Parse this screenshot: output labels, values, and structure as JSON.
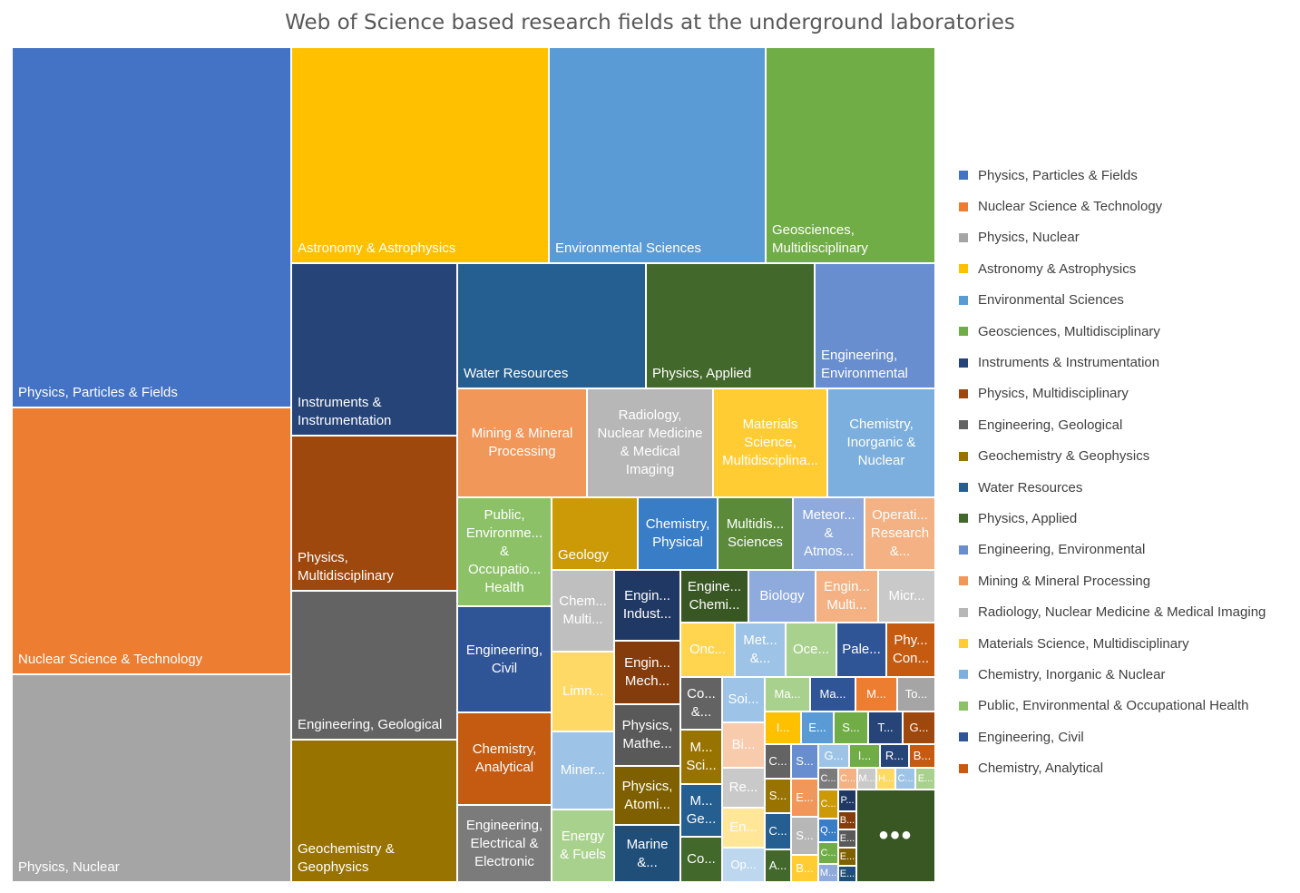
{
  "chart_data": {
    "type": "treemap",
    "title": "Web of Science based research fields at the underground laboratories",
    "legend_position": "right",
    "more_indicator": "•••",
    "legend": [
      {
        "label": "Physics, Particles & Fields",
        "color": "#4472C4"
      },
      {
        "label": "Nuclear Science & Technology",
        "color": "#ED7D31"
      },
      {
        "label": "Physics, Nuclear",
        "color": "#A5A5A5"
      },
      {
        "label": "Astronomy & Astrophysics",
        "color": "#FFC000"
      },
      {
        "label": "Environmental Sciences",
        "color": "#5B9BD5"
      },
      {
        "label": "Geosciences, Multidisciplinary",
        "color": "#70AD47"
      },
      {
        "label": "Instruments & Instrumentation",
        "color": "#264478"
      },
      {
        "label": "Physics, Multidisciplinary",
        "color": "#9E480E"
      },
      {
        "label": "Engineering, Geological",
        "color": "#636363"
      },
      {
        "label": "Geochemistry & Geophysics",
        "color": "#997300"
      },
      {
        "label": "Water Resources",
        "color": "#255E91"
      },
      {
        "label": "Physics, Applied",
        "color": "#43682B"
      },
      {
        "label": "Engineering, Environmental",
        "color": "#698ED0"
      },
      {
        "label": "Mining & Mineral Processing",
        "color": "#F1975A"
      },
      {
        "label": "Radiology, Nuclear Medicine & Medical Imaging",
        "color": "#B7B7B7"
      },
      {
        "label": "Materials Science, Multidisciplinary",
        "color": "#FFCD33"
      },
      {
        "label": "Chemistry, Inorganic & Nuclear",
        "color": "#7CAFDD"
      },
      {
        "label": "Public, Environmental & Occupational Health",
        "color": "#8CC168"
      },
      {
        "label": "Engineering, Civil",
        "color": "#2F5597"
      },
      {
        "label": "Chemistry, Analytical",
        "color": "#C55A11"
      }
    ],
    "tiles": [
      {
        "label": "Physics, Particles & Fields",
        "color": "#4472C4",
        "x0": 13,
        "y0": 52,
        "x1": 321,
        "y1": 449,
        "align": "left"
      },
      {
        "label": "Nuclear Science & Technology",
        "color": "#ED7D31",
        "x0": 13,
        "y0": 449,
        "x1": 321,
        "y1": 743,
        "align": "left"
      },
      {
        "label": "Physics, Nuclear",
        "color": "#A5A5A5",
        "x0": 13,
        "y0": 743,
        "x1": 321,
        "y1": 972,
        "align": "left"
      },
      {
        "label": "Astronomy & Astrophysics",
        "color": "#FFC000",
        "x0": 321,
        "y0": 52,
        "x1": 605,
        "y1": 290,
        "align": "left"
      },
      {
        "label": "Environmental Sciences",
        "color": "#5B9BD5",
        "x0": 605,
        "y0": 52,
        "x1": 844,
        "y1": 290,
        "align": "left"
      },
      {
        "label": "Geosciences,\nMultidisciplinary",
        "color": "#70AD47",
        "x0": 844,
        "y0": 52,
        "x1": 1031,
        "y1": 290,
        "align": "left"
      },
      {
        "label": "Instruments &\nInstrumentation",
        "color": "#264478",
        "x0": 321,
        "y0": 290,
        "x1": 504,
        "y1": 480,
        "align": "left"
      },
      {
        "label": "Physics,\nMultidisciplinary",
        "color": "#9E480E",
        "x0": 321,
        "y0": 480,
        "x1": 504,
        "y1": 651,
        "align": "left"
      },
      {
        "label": "Engineering, Geological",
        "color": "#636363",
        "x0": 321,
        "y0": 651,
        "x1": 504,
        "y1": 815,
        "align": "left"
      },
      {
        "label": "Geochemistry &\nGeophysics",
        "color": "#997300",
        "x0": 321,
        "y0": 815,
        "x1": 504,
        "y1": 972,
        "align": "left"
      },
      {
        "label": "Water Resources",
        "color": "#255E91",
        "x0": 504,
        "y0": 290,
        "x1": 712,
        "y1": 428,
        "align": "left"
      },
      {
        "label": "Physics, Applied",
        "color": "#43682B",
        "x0": 712,
        "y0": 290,
        "x1": 898,
        "y1": 428,
        "align": "left"
      },
      {
        "label": "Engineering,\nEnvironmental",
        "color": "#698ED0",
        "x0": 898,
        "y0": 290,
        "x1": 1031,
        "y1": 428,
        "align": "left"
      },
      {
        "label": "Mining & Mineral\nProcessing",
        "color": "#F1975A",
        "x0": 504,
        "y0": 428,
        "x1": 647,
        "y1": 548,
        "align": "center"
      },
      {
        "label": "Radiology,\nNuclear Medicine\n& Medical\nImaging",
        "color": "#B7B7B7",
        "x0": 647,
        "y0": 428,
        "x1": 786,
        "y1": 548,
        "align": "center"
      },
      {
        "label": "Materials\nScience,\nMultidisciplina...",
        "color": "#FFCD33",
        "x0": 786,
        "y0": 428,
        "x1": 912,
        "y1": 548,
        "align": "center"
      },
      {
        "label": "Chemistry,\nInorganic &\nNuclear",
        "color": "#7CAFDD",
        "x0": 912,
        "y0": 428,
        "x1": 1031,
        "y1": 548,
        "align": "center"
      },
      {
        "label": "Public,\nEnvironme...\n&\nOccupatio...\nHealth",
        "color": "#8CC168",
        "x0": 504,
        "y0": 548,
        "x1": 608,
        "y1": 668,
        "align": "center"
      },
      {
        "label": "Geology",
        "color": "#CC9A06",
        "x0": 608,
        "y0": 548,
        "x1": 703,
        "y1": 628,
        "align": "left"
      },
      {
        "label": "Chemistry,\nPhysical",
        "color": "#3A7DC7",
        "x0": 703,
        "y0": 548,
        "x1": 791,
        "y1": 628,
        "align": "center"
      },
      {
        "label": "Multidis...\nSciences",
        "color": "#5A8A3A",
        "x0": 791,
        "y0": 548,
        "x1": 874,
        "y1": 628,
        "align": "center"
      },
      {
        "label": "Meteor...\n&\nAtmos...",
        "color": "#8FAADC",
        "x0": 874,
        "y0": 548,
        "x1": 953,
        "y1": 628,
        "align": "center"
      },
      {
        "label": "Operati...\nResearch\n&...",
        "color": "#F4B183",
        "x0": 953,
        "y0": 548,
        "x1": 1031,
        "y1": 628,
        "align": "center"
      },
      {
        "label": "Engineering,\nCivil",
        "color": "#2F5597",
        "x0": 504,
        "y0": 668,
        "x1": 608,
        "y1": 785,
        "align": "center"
      },
      {
        "label": "Chemistry,\nAnalytical",
        "color": "#C55A11",
        "x0": 504,
        "y0": 785,
        "x1": 608,
        "y1": 887,
        "align": "center"
      },
      {
        "label": "Engineering,\nElectrical &\nElectronic",
        "color": "#7B7B7B",
        "x0": 504,
        "y0": 887,
        "x1": 608,
        "y1": 972,
        "align": "center"
      },
      {
        "label": "Chem...\nMulti...",
        "color": "#BFBFBF",
        "x0": 608,
        "y0": 628,
        "x1": 677,
        "y1": 718,
        "align": "center"
      },
      {
        "label": "Limn...",
        "color": "#FFD966",
        "x0": 608,
        "y0": 718,
        "x1": 677,
        "y1": 806,
        "align": "center"
      },
      {
        "label": "Miner...",
        "color": "#9DC3E6",
        "x0": 608,
        "y0": 806,
        "x1": 677,
        "y1": 892,
        "align": "center"
      },
      {
        "label": "Energy\n& Fuels",
        "color": "#A9D18E",
        "x0": 608,
        "y0": 892,
        "x1": 677,
        "y1": 972,
        "align": "center"
      },
      {
        "label": "Engin...\nIndust...",
        "color": "#203864",
        "x0": 677,
        "y0": 628,
        "x1": 750,
        "y1": 706,
        "align": "center"
      },
      {
        "label": "Engin...\nMech...",
        "color": "#843C0C",
        "x0": 677,
        "y0": 706,
        "x1": 750,
        "y1": 776,
        "align": "center"
      },
      {
        "label": "Physics,\nMathe...",
        "color": "#595959",
        "x0": 677,
        "y0": 776,
        "x1": 750,
        "y1": 844,
        "align": "center"
      },
      {
        "label": "Physics,\nAtomi...",
        "color": "#7F6000",
        "x0": 677,
        "y0": 844,
        "x1": 750,
        "y1": 909,
        "align": "center"
      },
      {
        "label": "Marine\n&...",
        "color": "#1F4E79",
        "x0": 677,
        "y0": 909,
        "x1": 750,
        "y1": 972,
        "align": "center"
      },
      {
        "label": "Engine...\nChemi...",
        "color": "#385723",
        "x0": 750,
        "y0": 628,
        "x1": 825,
        "y1": 686,
        "align": "center"
      },
      {
        "label": "Biology",
        "color": "#8FAADC",
        "x0": 825,
        "y0": 628,
        "x1": 899,
        "y1": 686,
        "align": "center"
      },
      {
        "label": "Engin...\nMulti...",
        "color": "#F4B183",
        "x0": 899,
        "y0": 628,
        "x1": 968,
        "y1": 686,
        "align": "center"
      },
      {
        "label": "Micr...",
        "color": "#C9C9C9",
        "x0": 968,
        "y0": 628,
        "x1": 1031,
        "y1": 686,
        "align": "center"
      },
      {
        "label": "Onc...",
        "color": "#FFD54F",
        "x0": 750,
        "y0": 686,
        "x1": 810,
        "y1": 746,
        "align": "center"
      },
      {
        "label": "Met...\n&...",
        "color": "#9DC3E6",
        "x0": 810,
        "y0": 686,
        "x1": 866,
        "y1": 746,
        "align": "center"
      },
      {
        "label": "Oce...",
        "color": "#A9D18E",
        "x0": 866,
        "y0": 686,
        "x1": 922,
        "y1": 746,
        "align": "center"
      },
      {
        "label": "Pale...",
        "color": "#2F5597",
        "x0": 922,
        "y0": 686,
        "x1": 977,
        "y1": 746,
        "align": "center"
      },
      {
        "label": "Phy...\nCon...",
        "color": "#C55A11",
        "x0": 977,
        "y0": 686,
        "x1": 1031,
        "y1": 746,
        "align": "center"
      },
      {
        "label": "Co...\n&...",
        "color": "#636363",
        "x0": 750,
        "y0": 746,
        "x1": 796,
        "y1": 804,
        "align": "center"
      },
      {
        "label": "M...\nSci...",
        "color": "#997300",
        "x0": 750,
        "y0": 804,
        "x1": 796,
        "y1": 864,
        "align": "center"
      },
      {
        "label": "M...\nGe...",
        "color": "#255E91",
        "x0": 750,
        "y0": 864,
        "x1": 796,
        "y1": 922,
        "align": "center"
      },
      {
        "label": "Co...",
        "color": "#43682B",
        "x0": 750,
        "y0": 922,
        "x1": 796,
        "y1": 972,
        "align": "center"
      },
      {
        "label": "Soi...",
        "color": "#9DC3E6",
        "x0": 796,
        "y0": 746,
        "x1": 843,
        "y1": 796,
        "align": "center"
      },
      {
        "label": "Bi...",
        "color": "#F8CBAD",
        "x0": 796,
        "y0": 796,
        "x1": 843,
        "y1": 846,
        "align": "center"
      },
      {
        "label": "Re...",
        "color": "#C9C9C9",
        "x0": 796,
        "y0": 846,
        "x1": 843,
        "y1": 890,
        "align": "center"
      },
      {
        "label": "En...",
        "color": "#FFE699",
        "x0": 796,
        "y0": 890,
        "x1": 843,
        "y1": 934,
        "align": "center"
      },
      {
        "label": "Op...",
        "color": "#BDD7EE",
        "x0": 796,
        "y0": 934,
        "x1": 843,
        "y1": 972,
        "align": "center"
      },
      {
        "label": "Ma...",
        "color": "#A9D18E",
        "x0": 843,
        "y0": 746,
        "x1": 893,
        "y1": 784,
        "align": "center"
      },
      {
        "label": "Ma...",
        "color": "#2F5597",
        "x0": 893,
        "y0": 746,
        "x1": 943,
        "y1": 784,
        "align": "center"
      },
      {
        "label": "M...",
        "color": "#ED7D31",
        "x0": 943,
        "y0": 746,
        "x1": 989,
        "y1": 784,
        "align": "center"
      },
      {
        "label": "To...",
        "color": "#A5A5A5",
        "x0": 989,
        "y0": 746,
        "x1": 1031,
        "y1": 784,
        "align": "center"
      },
      {
        "label": "I...",
        "color": "#FFC000",
        "x0": 843,
        "y0": 784,
        "x1": 883,
        "y1": 820,
        "align": "center"
      },
      {
        "label": "E...",
        "color": "#5B9BD5",
        "x0": 883,
        "y0": 784,
        "x1": 919,
        "y1": 820,
        "align": "center"
      },
      {
        "label": "S...",
        "color": "#70AD47",
        "x0": 919,
        "y0": 784,
        "x1": 957,
        "y1": 820,
        "align": "center"
      },
      {
        "label": "T...",
        "color": "#264478",
        "x0": 957,
        "y0": 784,
        "x1": 995,
        "y1": 820,
        "align": "center"
      },
      {
        "label": "G...",
        "color": "#9E480E",
        "x0": 995,
        "y0": 784,
        "x1": 1031,
        "y1": 820,
        "align": "center"
      },
      {
        "label": "C...",
        "color": "#636363",
        "x0": 843,
        "y0": 820,
        "x1": 872,
        "y1": 858,
        "align": "center"
      },
      {
        "label": "S...",
        "color": "#698ED0",
        "x0": 872,
        "y0": 820,
        "x1": 902,
        "y1": 858,
        "align": "center"
      },
      {
        "label": "G...",
        "color": "#9DC3E6",
        "x0": 902,
        "y0": 820,
        "x1": 936,
        "y1": 846,
        "align": "center"
      },
      {
        "label": "I...",
        "color": "#70AD47",
        "x0": 936,
        "y0": 820,
        "x1": 970,
        "y1": 846,
        "align": "center"
      },
      {
        "label": "R...",
        "color": "#264478",
        "x0": 970,
        "y0": 820,
        "x1": 1002,
        "y1": 846,
        "align": "center"
      },
      {
        "label": "B...",
        "color": "#C55A11",
        "x0": 1002,
        "y0": 820,
        "x1": 1031,
        "y1": 846,
        "align": "center"
      },
      {
        "label": "C...",
        "color": "#7B7B7B",
        "x0": 902,
        "y0": 846,
        "x1": 924,
        "y1": 870,
        "align": "center"
      },
      {
        "label": "C...",
        "color": "#F4B183",
        "x0": 924,
        "y0": 846,
        "x1": 945,
        "y1": 870,
        "align": "center"
      },
      {
        "label": "M...",
        "color": "#C9C9C9",
        "x0": 945,
        "y0": 846,
        "x1": 966,
        "y1": 870,
        "align": "center"
      },
      {
        "label": "H...",
        "color": "#FFD966",
        "x0": 966,
        "y0": 846,
        "x1": 987,
        "y1": 870,
        "align": "center"
      },
      {
        "label": "C...",
        "color": "#9DC3E6",
        "x0": 987,
        "y0": 846,
        "x1": 1009,
        "y1": 870,
        "align": "center"
      },
      {
        "label": "E...",
        "color": "#A9D18E",
        "x0": 1009,
        "y0": 846,
        "x1": 1031,
        "y1": 870,
        "align": "center"
      },
      {
        "label": "S...",
        "color": "#997300",
        "x0": 843,
        "y0": 858,
        "x1": 872,
        "y1": 896,
        "align": "center"
      },
      {
        "label": "E...",
        "color": "#F1975A",
        "x0": 872,
        "y0": 858,
        "x1": 902,
        "y1": 900,
        "align": "center"
      },
      {
        "label": "C...",
        "color": "#255E91",
        "x0": 843,
        "y0": 896,
        "x1": 872,
        "y1": 936,
        "align": "center"
      },
      {
        "label": "S...",
        "color": "#B7B7B7",
        "x0": 872,
        "y0": 900,
        "x1": 902,
        "y1": 942,
        "align": "center"
      },
      {
        "label": "A...",
        "color": "#43682B",
        "x0": 843,
        "y0": 936,
        "x1": 872,
        "y1": 972,
        "align": "center"
      },
      {
        "label": "B...",
        "color": "#FFCD33",
        "x0": 872,
        "y0": 942,
        "x1": 902,
        "y1": 972,
        "align": "center"
      },
      {
        "label": "C...",
        "color": "#CC9A06",
        "x0": 902,
        "y0": 870,
        "x1": 924,
        "y1": 902,
        "align": "center"
      },
      {
        "label": "Q...",
        "color": "#3A7DC7",
        "x0": 902,
        "y0": 902,
        "x1": 924,
        "y1": 928,
        "align": "center"
      },
      {
        "label": "C...",
        "color": "#70AD47",
        "x0": 902,
        "y0": 928,
        "x1": 924,
        "y1": 952,
        "align": "center"
      },
      {
        "label": "M...",
        "color": "#8FAADC",
        "x0": 902,
        "y0": 952,
        "x1": 924,
        "y1": 972,
        "align": "center"
      },
      {
        "label": "P...",
        "color": "#203864",
        "x0": 924,
        "y0": 870,
        "x1": 944,
        "y1": 894,
        "align": "center"
      },
      {
        "label": "B...",
        "color": "#843C0C",
        "x0": 924,
        "y0": 894,
        "x1": 944,
        "y1": 914,
        "align": "center"
      },
      {
        "label": "E...",
        "color": "#595959",
        "x0": 924,
        "y0": 914,
        "x1": 944,
        "y1": 934,
        "align": "center"
      },
      {
        "label": "E...",
        "color": "#7F6000",
        "x0": 924,
        "y0": 934,
        "x1": 944,
        "y1": 954,
        "align": "center"
      },
      {
        "label": "E...",
        "color": "#1F4E79",
        "x0": 924,
        "y0": 954,
        "x1": 944,
        "y1": 972,
        "align": "center"
      },
      {
        "label": "",
        "color": "#385723",
        "x0": 944,
        "y0": 870,
        "x1": 1031,
        "y1": 972,
        "align": "center",
        "more": true
      }
    ]
  }
}
